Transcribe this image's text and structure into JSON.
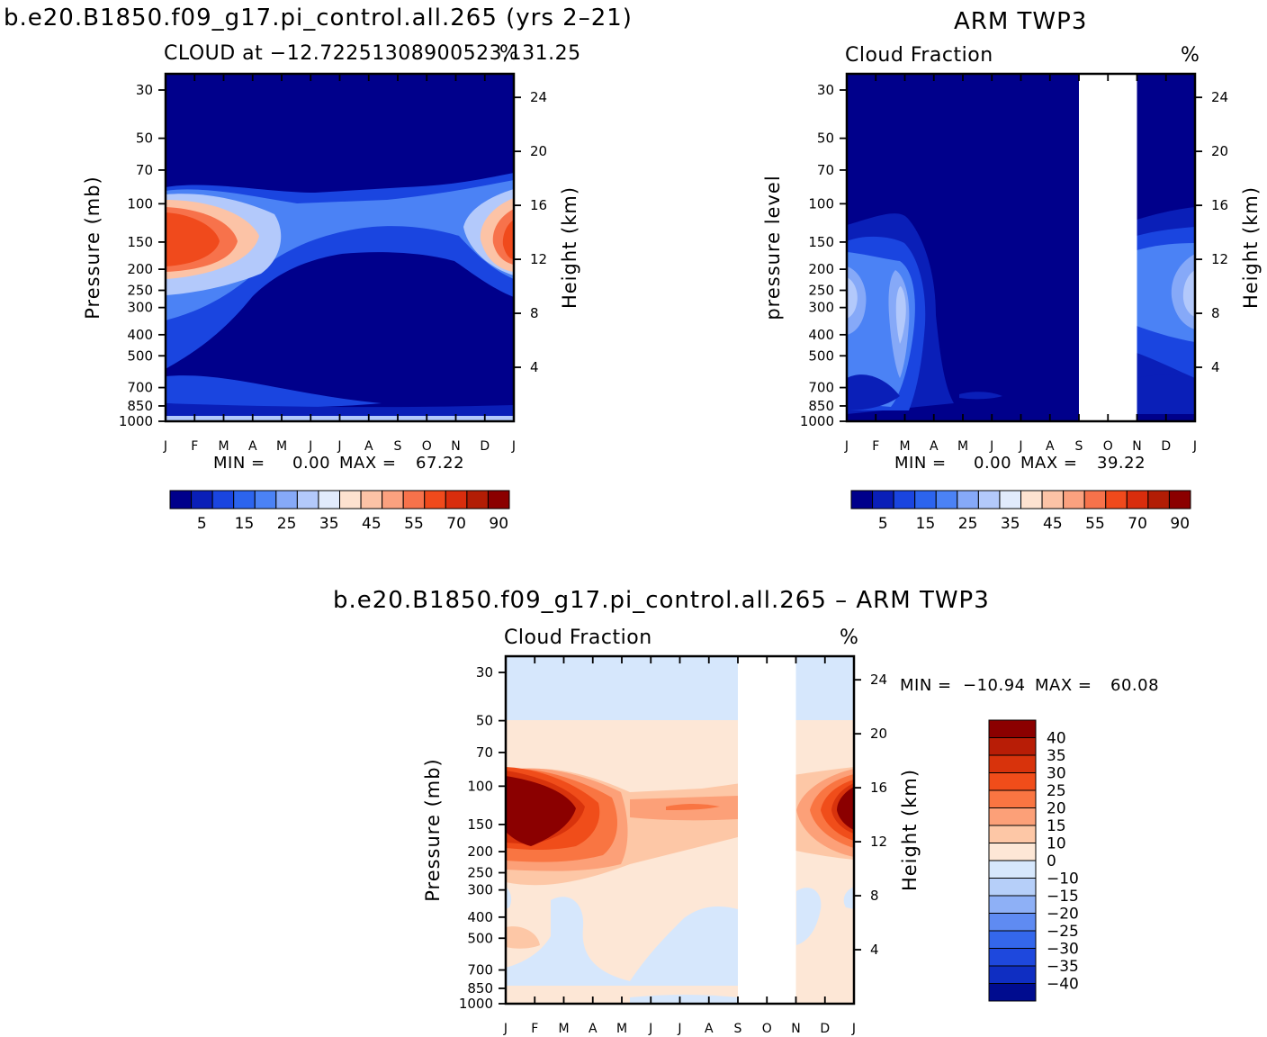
{
  "figure": {
    "top_left_title": "b.e20.B1850.f09_g17.pi_control.all.265 (yrs 2–21)",
    "top_right_title": "ARM TWP3",
    "bottom_title": "b.e20.B1850.f09_g17.pi_control.all.265 – ARM TWP3",
    "months": [
      "J",
      "F",
      "M",
      "A",
      "M",
      "J",
      "J",
      "A",
      "S",
      "O",
      "N",
      "D",
      "J"
    ],
    "pressure_ticks": [
      "30",
      "50",
      "70",
      "100",
      "150",
      "200",
      "250",
      "300",
      "400",
      "500",
      "700",
      "850",
      "1000"
    ],
    "height_ticks": [
      "24",
      "20",
      "16",
      "12",
      "8",
      "4"
    ]
  },
  "chart_data": [
    {
      "type": "heatmap",
      "panel": "model",
      "title": "CLOUD at −12.72251308900523,131.25",
      "units": "%",
      "ylabel": "Pressure (mb)",
      "ylabel_right": "Height (km)",
      "x": [
        "J",
        "F",
        "M",
        "A",
        "M",
        "J",
        "J",
        "A",
        "S",
        "O",
        "N",
        "D",
        "J"
      ],
      "y_pressure": [
        30,
        50,
        70,
        100,
        150,
        200,
        250,
        300,
        400,
        500,
        700,
        850,
        1000
      ],
      "y_height_km": [
        24,
        20,
        16,
        12,
        8,
        4
      ],
      "min": "0.00",
      "max": "67.22",
      "stats": {
        "min_label": "MIN =",
        "min_value": "0.00",
        "max_label": "MAX =",
        "max_value": "67.22"
      },
      "colorbar": {
        "labels": [
          "5",
          "15",
          "25",
          "35",
          "45",
          "55",
          "70",
          "90"
        ],
        "colors": [
          "#00008b",
          "#0a1fb8",
          "#1a45e0",
          "#2c64ee",
          "#4b82f5",
          "#86a9f8",
          "#b3c9fb",
          "#e1ebfc",
          "#fde2d0",
          "#fcc3a6",
          "#fba17f",
          "#f7724b",
          "#f04a1c",
          "#d92d0d",
          "#b21d05",
          "#8b0000"
        ]
      },
      "grid": false
    },
    {
      "type": "heatmap",
      "panel": "observation",
      "title": "Cloud Fraction",
      "units": "%",
      "ylabel": "pressure level",
      "ylabel_right": "Height (km)",
      "x": [
        "J",
        "F",
        "M",
        "A",
        "M",
        "J",
        "J",
        "A",
        "S",
        "O",
        "N",
        "D",
        "J"
      ],
      "missing_months": [
        "S",
        "O"
      ],
      "min": "0.00",
      "max": "39.22",
      "stats": {
        "min_label": "MIN =",
        "min_value": "0.00",
        "max_label": "MAX =",
        "max_value": "39.22"
      },
      "colorbar": {
        "labels": [
          "5",
          "15",
          "25",
          "35",
          "45",
          "55",
          "70",
          "90"
        ],
        "colors": [
          "#00008b",
          "#0a1fb8",
          "#1a45e0",
          "#2c64ee",
          "#4b82f5",
          "#86a9f8",
          "#b3c9fb",
          "#e1ebfc",
          "#fde2d0",
          "#fcc3a6",
          "#fba17f",
          "#f7724b",
          "#f04a1c",
          "#d92d0d",
          "#b21d05",
          "#8b0000"
        ]
      },
      "grid": false
    },
    {
      "type": "heatmap",
      "panel": "difference",
      "title": "Cloud Fraction",
      "units": "%",
      "ylabel": "Pressure (mb)",
      "ylabel_right": "Height (km)",
      "x": [
        "J",
        "F",
        "M",
        "A",
        "M",
        "J",
        "J",
        "A",
        "S",
        "O",
        "N",
        "D",
        "J"
      ],
      "missing_months": [
        "S",
        "O"
      ],
      "min": "−10.94",
      "max": "60.08",
      "stats": {
        "min_label": "MIN =",
        "min_value": "−10.94",
        "max_label": "MAX =",
        "max_value": "60.08"
      },
      "colorbar": {
        "labels": [
          "40",
          "35",
          "30",
          "25",
          "20",
          "15",
          "10",
          "0",
          "−10",
          "−15",
          "−20",
          "−25",
          "−30",
          "−35",
          "−40"
        ],
        "colors": [
          "#8b0000",
          "#b81d06",
          "#d8330c",
          "#f04d1a",
          "#f97542",
          "#fca078",
          "#fdc7a6",
          "#fde7d6",
          "#d6e7fc",
          "#b6cff9",
          "#8eb0f6",
          "#5f8bf2",
          "#3467eb",
          "#1e48dd",
          "#0f2ec2",
          "#000c8f"
        ]
      },
      "grid": false
    }
  ]
}
